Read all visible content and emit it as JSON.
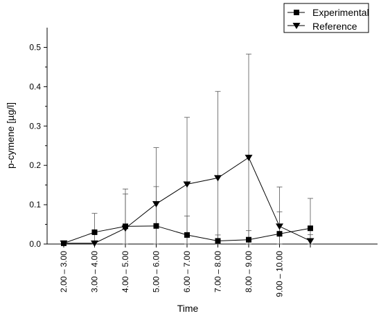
{
  "chart_data": {
    "type": "line",
    "xlabel": "Time",
    "ylabel": "p-cymene [µg/l]",
    "categories": [
      "2.00 – 3.00",
      "3.00 – 4.00",
      "4.00 – 5.00",
      "5.00 – 6.00",
      "6.00 – 7.00",
      "7.00 – 8.00",
      "8.00 – 9.00",
      "9.00 – 10.00",
      ""
    ],
    "ylim": [
      0,
      0.55
    ],
    "yticks": [
      "0.0",
      "0.1",
      "0.2",
      "0.3",
      "0.4",
      "0.5"
    ],
    "grid": false,
    "legend_position": "top-right",
    "series": [
      {
        "name": "Experimental",
        "marker": "square",
        "color": "#000000",
        "values": [
          0.002,
          0.03,
          0.045,
          0.046,
          0.023,
          0.008,
          0.011,
          0.026,
          0.04
        ],
        "error": [
          0.0,
          0.048,
          0.082,
          0.1,
          0.048,
          0.015,
          0.023,
          0.056,
          0.076
        ]
      },
      {
        "name": "Reference",
        "marker": "triangle-down",
        "color": "#000000",
        "values": [
          0.002,
          0.002,
          0.04,
          0.102,
          0.152,
          0.168,
          0.22,
          0.045,
          0.008
        ],
        "error": [
          0.0,
          0.0,
          0.1,
          0.143,
          0.17,
          0.22,
          0.263,
          0.1,
          0.016
        ]
      }
    ]
  }
}
